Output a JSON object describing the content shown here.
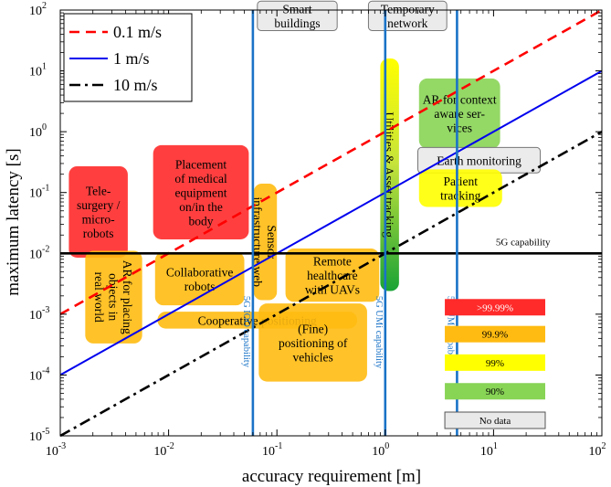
{
  "chart_data": {
    "type": "line",
    "xscale": "log",
    "yscale": "log",
    "xlim": [
      0.001,
      100
    ],
    "ylim": [
      1e-05,
      100
    ],
    "xlabel": "accuracy requirement [m]",
    "ylabel": "maximum latency [s]",
    "x_ticks": [
      {
        "value": 0.001,
        "base": "10",
        "exp": "-3"
      },
      {
        "value": 0.01,
        "base": "10",
        "exp": "-2"
      },
      {
        "value": 0.1,
        "base": "10",
        "exp": "-1"
      },
      {
        "value": 1,
        "base": "10",
        "exp": "0"
      },
      {
        "value": 10,
        "base": "10",
        "exp": "1"
      },
      {
        "value": 100,
        "base": "10",
        "exp": "2"
      }
    ],
    "y_ticks": [
      {
        "value": 1e-05,
        "base": "10",
        "exp": "-5"
      },
      {
        "value": 0.0001,
        "base": "10",
        "exp": "-4"
      },
      {
        "value": 0.001,
        "base": "10",
        "exp": "-3"
      },
      {
        "value": 0.01,
        "base": "10",
        "exp": "-2"
      },
      {
        "value": 0.1,
        "base": "10",
        "exp": "-1"
      },
      {
        "value": 1,
        "base": "10",
        "exp": "0"
      },
      {
        "value": 10,
        "base": "10",
        "exp": "1"
      },
      {
        "value": 100,
        "base": "10",
        "exp": "2"
      }
    ],
    "legend_position": "top-left",
    "series": [
      {
        "name": "0.1 m/s",
        "color": "#ff0000",
        "dash": "dashed",
        "slope_per_second": 0.1,
        "x": [
          0.001,
          100
        ],
        "y": [
          0.001,
          100
        ]
      },
      {
        "name": "1 m/s",
        "color": "#0000ee",
        "dash": "solid",
        "slope_per_second": 1,
        "x": [
          0.001,
          100
        ],
        "y": [
          0.0001,
          10
        ]
      },
      {
        "name": "10 m/s",
        "color": "#000000",
        "dash": "dashdot",
        "slope_per_second": 10,
        "x": [
          0.001,
          100
        ],
        "y": [
          1e-05,
          1
        ]
      }
    ],
    "reference_lines": [
      {
        "orientation": "horizontal",
        "value": 0.01,
        "label": "5G capability",
        "label_x": 10.5
      },
      {
        "orientation": "vertical",
        "value": 0.06,
        "label": "5G IOO capability",
        "label_y": 3e-05,
        "label_to": 0.002
      },
      {
        "orientation": "vertical",
        "value": 1.0,
        "label": "5G UMi capability",
        "label_y": 3e-05,
        "label_to": 0.002
      },
      {
        "orientation": "vertical",
        "value": 4.6,
        "label": "5G UMa capability",
        "label_y": 3e-05,
        "label_to": 0.002
      }
    ],
    "reliability_colors": {
      ">99.99%": "#ff2a2a",
      "99.9%": "#ffbb11",
      "99%": "#ffff00",
      "90%": "#88d455",
      "No data": "#e9e9e9"
    },
    "reliability_legend": [
      {
        "label": ">99.99%",
        "text_color": "#ffffff"
      },
      {
        "label": "99.9%",
        "text_color": "#000000"
      },
      {
        "label": "99%",
        "text_color": "#000000"
      },
      {
        "label": "90%",
        "text_color": "#000000"
      },
      {
        "label": "No data",
        "text_color": "#000000"
      }
    ],
    "applications": [
      {
        "name": "tele-surgery",
        "label": [
          "Tele-",
          "surgery /",
          "micro-",
          "robots"
        ],
        "reliability": ">99.99%",
        "x_range": [
          0.0012,
          0.0042
        ],
        "y_range": [
          0.0085,
          0.27
        ],
        "orient": "h"
      },
      {
        "name": "placement-medical-equipment",
        "label": [
          "Placement",
          "of medical",
          "equipment",
          "on/in the",
          "body"
        ],
        "reliability": ">99.99%",
        "x_range": [
          0.0072,
          0.055
        ],
        "y_range": [
          0.017,
          0.6
        ],
        "orient": "h"
      },
      {
        "name": "ar-placing-objects",
        "label": [
          "AR for placing",
          "objects in",
          "real world"
        ],
        "reliability": "99.9%",
        "x_range": [
          0.0017,
          0.0057
        ],
        "y_range": [
          0.00033,
          0.011
        ],
        "orient": "v"
      },
      {
        "name": "collaborative-robots",
        "label": [
          "Collaborative",
          "robots"
        ],
        "reliability": "99.9%",
        "x_range": [
          0.0075,
          0.05
        ],
        "y_range": [
          0.0014,
          0.0105
        ],
        "orient": "h"
      },
      {
        "name": "sensor-infrastructure-web",
        "label": [
          "Sensor",
          "infrastructure web"
        ],
        "reliability": "99.9%",
        "x_range": [
          0.061,
          0.1
        ],
        "y_range": [
          0.0017,
          0.14
        ],
        "orient": "v"
      },
      {
        "name": "remote-healthcare-uavs",
        "label": [
          "Remote",
          "healthcare",
          "with UAVs"
        ],
        "reliability": "99.9%",
        "x_range": [
          0.12,
          0.88
        ],
        "y_range": [
          0.0016,
          0.012
        ],
        "orient": "h"
      },
      {
        "name": "cooperative-positioning",
        "label": [
          "Cooperative positioning"
        ],
        "reliability": "99.9%",
        "x_range": [
          0.0079,
          0.55
        ],
        "y_range": [
          0.00058,
          0.0011
        ],
        "orient": "h"
      },
      {
        "name": "fine-positioning-vehicles",
        "label": [
          "(Fine)",
          "positioning of",
          "vehicles"
        ],
        "reliability": "99.9%",
        "x_range": [
          0.068,
          0.68
        ],
        "y_range": [
          7.8e-05,
          0.0015
        ],
        "orient": "h"
      },
      {
        "name": "utilities-asset-tracking",
        "label": [
          "Utilities & Asset tracking"
        ],
        "reliability": "gradient-yellow-green",
        "x_range": [
          0.9,
          1.34
        ],
        "y_range": [
          0.0024,
          16
        ],
        "orient": "v"
      },
      {
        "name": "ar-context-aware",
        "label": [
          "AR for context",
          "aware ser-",
          "vices"
        ],
        "reliability": "90%",
        "x_range": [
          2.05,
          11.5
        ],
        "y_range": [
          0.53,
          7.5
        ],
        "orient": "h"
      },
      {
        "name": "earth-monitoring",
        "label": [
          "Earth monitoring"
        ],
        "reliability": "No data",
        "x_range": [
          2.0,
          27
        ],
        "y_range": [
          0.21,
          0.55
        ],
        "orient": "h"
      },
      {
        "name": "patient-tracking",
        "label": [
          "Patient",
          "tracking"
        ],
        "reliability": "99%",
        "x_range": [
          2.05,
          12.0
        ],
        "y_range": [
          0.058,
          0.24
        ],
        "orient": "h"
      },
      {
        "name": "smart-buildings",
        "label": [
          "Smart",
          "buildings"
        ],
        "reliability": "No data",
        "x_range": [
          0.066,
          0.36
        ],
        "y_range": [
          46,
          140
        ],
        "orient": "h"
      },
      {
        "name": "temporary-network",
        "label": [
          "Temporary",
          "network"
        ],
        "reliability": "No data",
        "x_range": [
          0.7,
          3.7
        ],
        "y_range": [
          46,
          140
        ],
        "orient": "h"
      }
    ]
  }
}
